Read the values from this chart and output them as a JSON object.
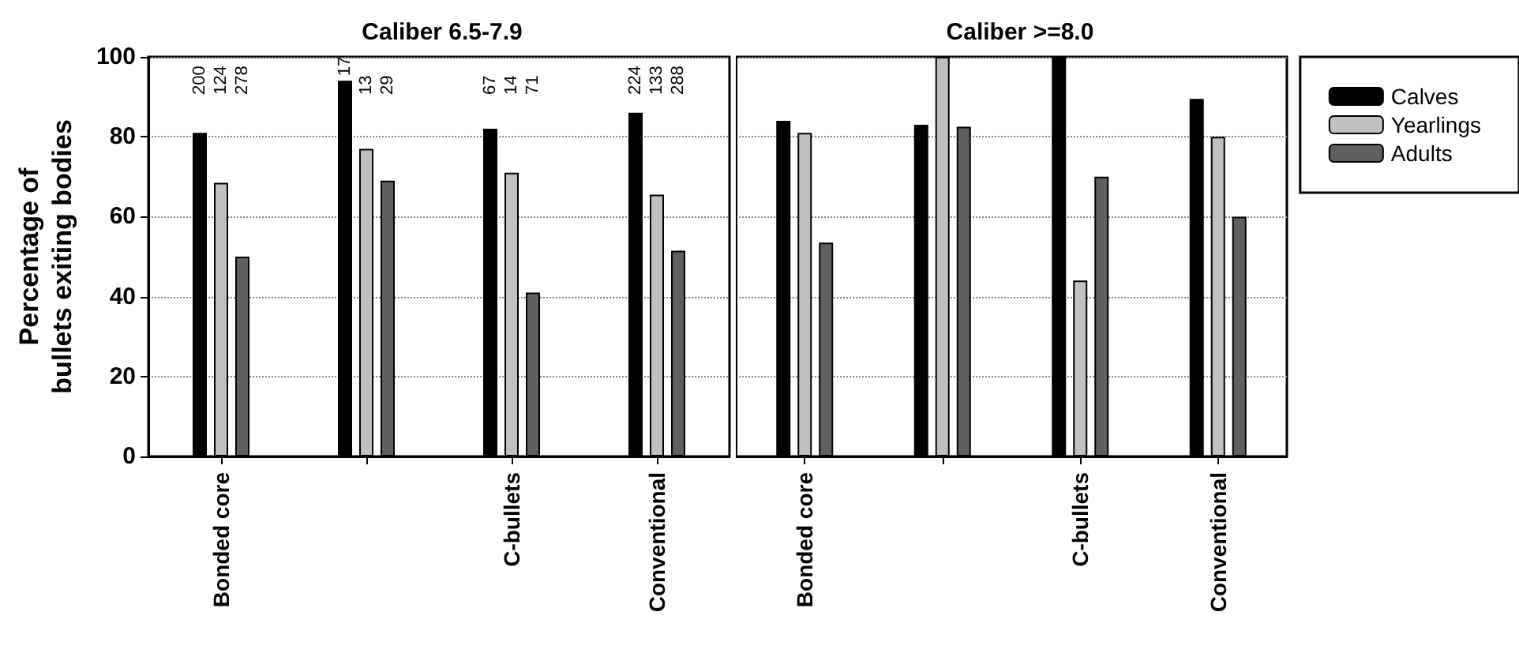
{
  "chart_data": [
    {
      "type": "bar",
      "title": "Caliber 6.5-7.9",
      "ylabel": "Percentage of bullets exiting bodies",
      "categories": [
        "Bonded core",
        null,
        "C-bullets",
        "Conventional"
      ],
      "ylim": [
        0,
        100
      ],
      "yticks": [
        0,
        20,
        40,
        60,
        80,
        100
      ],
      "grid": "y",
      "legend": false,
      "annotations": [
        "200",
        "124",
        "278",
        "17",
        "13",
        "29",
        "67",
        "14",
        "71",
        "224",
        "133",
        "288"
      ],
      "series": [
        {
          "color": "#000000",
          "values": [
            81,
            94,
            82,
            86
          ]
        },
        {
          "color": "#c0c0c0",
          "values": [
            68.5,
            77,
            71,
            65.5
          ]
        },
        {
          "color": "#606060",
          "values": [
            50,
            69,
            41,
            51.5
          ]
        }
      ]
    },
    {
      "type": "bar",
      "title": "Caliber >=8.0",
      "categories": [
        "Bonded core",
        null,
        "C-bullets",
        "Conventional"
      ],
      "ylim": [
        0,
        100
      ],
      "yticks": [
        0,
        20,
        40,
        60,
        80,
        100
      ],
      "grid": "y",
      "legend": "right",
      "tick_labels": "x",
      "series": [
        {
          "name": "Calves",
          "color": "#000000",
          "values": [
            84,
            83,
            100,
            89.5
          ]
        },
        {
          "name": "Yearlings",
          "color": "#c0c0c0",
          "values": [
            81,
            100,
            44,
            80
          ]
        },
        {
          "name": "Adults",
          "color": "#606060",
          "values": [
            53.5,
            82.5,
            70,
            60
          ]
        }
      ]
    }
  ]
}
